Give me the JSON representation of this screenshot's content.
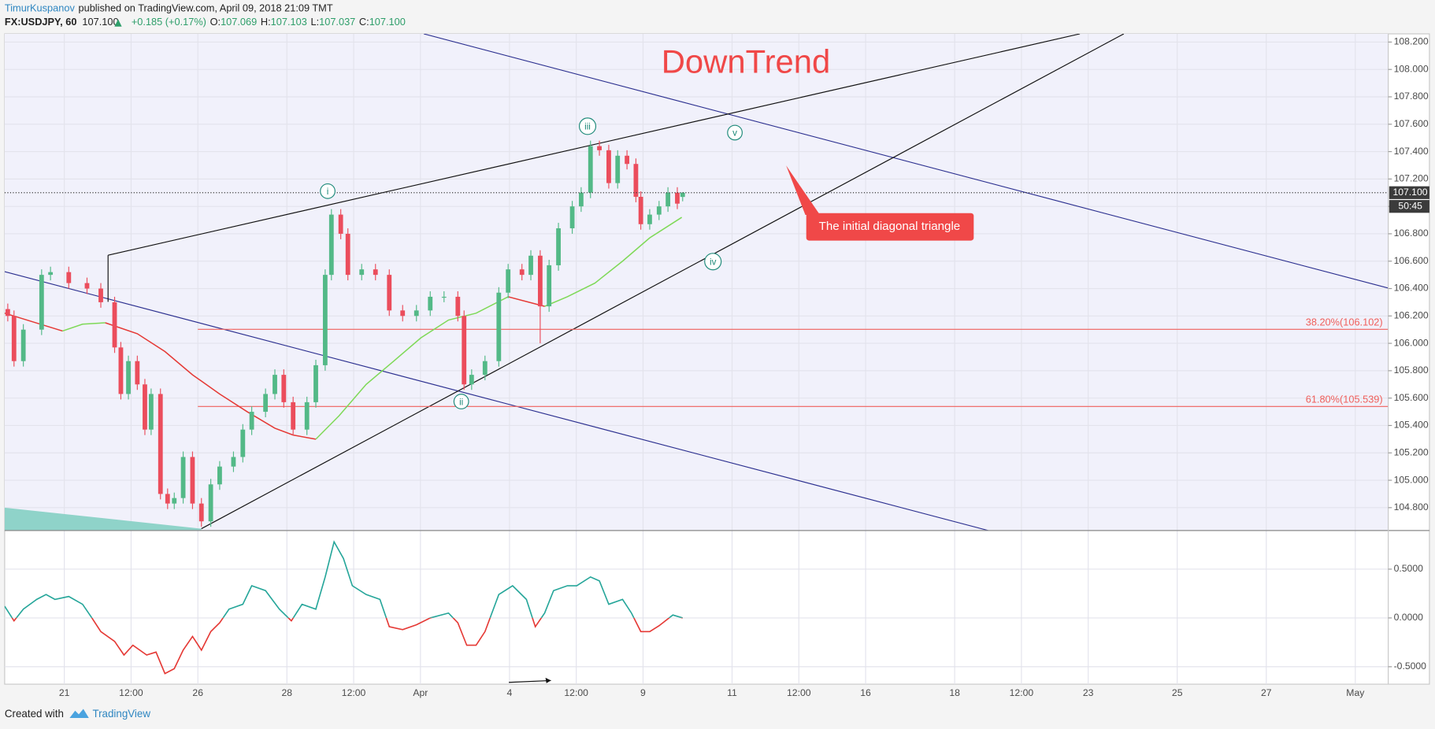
{
  "header": {
    "author": "TimurKuspanov",
    "published": "published on TradingView.com, April 09, 2018 21:09 TMT",
    "symbol": "FX:USDJPY, 60",
    "last": "107.100",
    "change": "+0.185 (+0.17%)",
    "ohlc": [
      {
        "label": "O:",
        "value": "107.069"
      },
      {
        "label": "H:",
        "value": "107.103"
      },
      {
        "label": "L:",
        "value": "107.037"
      },
      {
        "label": "C:",
        "value": "107.100"
      }
    ]
  },
  "footer": {
    "created": "Created with",
    "brand": "TradingView"
  },
  "chart_data": [
    {
      "type": "candlestick",
      "title": "DownTrend",
      "callout": "The initial diagonal triangle",
      "waves": [
        "i",
        "ii",
        "iii",
        "iv",
        "v"
      ],
      "up_color": "#53b987",
      "down_color": "#eb4d5c",
      "x": [
        -1.27,
        -1.13,
        -0.92,
        -0.51,
        -0.31,
        0.1,
        0.51,
        0.82,
        1.13,
        1.27,
        1.44,
        1.64,
        1.81,
        1.95,
        2.16,
        2.32,
        2.47,
        2.67,
        2.88,
        3.08,
        3.29,
        3.49,
        3.8,
        4.01,
        4.21,
        4.52,
        4.73,
        4.93,
        5.14,
        5.45,
        5.65,
        5.86,
        6.0,
        6.21,
        6.37,
        6.68,
        6.99,
        7.3,
        7.6,
        7.91,
        8.22,
        8.53,
        8.84,
        8.98,
        9.15,
        9.45,
        9.76,
        9.97,
        10.28,
        10.48,
        10.69,
        10.89,
        11.1,
        11.41,
        11.61,
        11.82,
        12.02,
        12.23,
        12.43,
        12.64,
        12.84,
        12.95,
        13.15,
        13.36,
        13.56,
        13.77,
        13.89
      ],
      "open": [
        106.25,
        106.2,
        105.87,
        106.1,
        106.5,
        106.52,
        106.44,
        106.4,
        106.3,
        105.97,
        105.63,
        105.87,
        105.7,
        105.37,
        105.63,
        104.9,
        104.83,
        104.87,
        105.17,
        104.83,
        104.7,
        104.97,
        105.1,
        105.17,
        105.37,
        105.5,
        105.63,
        105.77,
        105.57,
        105.37,
        105.57,
        105.84,
        106.5,
        106.94,
        106.8,
        106.5,
        106.54,
        106.5,
        106.24,
        106.2,
        106.24,
        106.34,
        106.34,
        106.2,
        105.7,
        105.77,
        105.87,
        106.37,
        106.54,
        106.5,
        106.64,
        106.27,
        106.57,
        106.84,
        107.0,
        107.1,
        107.44,
        107.41,
        107.17,
        107.37,
        107.31,
        107.07,
        106.87,
        106.94,
        107.0,
        107.1,
        107.069
      ],
      "high": [
        106.29,
        106.24,
        106.14,
        106.54,
        106.56,
        106.56,
        106.48,
        106.44,
        106.34,
        106.01,
        105.91,
        105.91,
        105.74,
        105.67,
        105.67,
        104.94,
        104.91,
        105.21,
        105.21,
        104.87,
        105.01,
        105.14,
        105.21,
        105.41,
        105.54,
        105.67,
        105.81,
        105.81,
        105.61,
        105.61,
        105.88,
        106.54,
        106.98,
        106.98,
        106.84,
        106.58,
        106.58,
        106.54,
        106.28,
        106.28,
        106.38,
        106.38,
        106.38,
        106.24,
        105.81,
        105.91,
        106.41,
        106.58,
        106.58,
        106.68,
        106.68,
        106.61,
        106.88,
        107.04,
        107.14,
        107.48,
        107.48,
        107.45,
        107.41,
        107.41,
        107.35,
        107.11,
        106.98,
        107.04,
        107.14,
        107.14,
        107.103
      ],
      "low": [
        106.16,
        105.83,
        105.83,
        106.06,
        106.46,
        106.4,
        106.36,
        106.26,
        105.93,
        105.59,
        105.59,
        105.66,
        105.33,
        105.33,
        104.86,
        104.79,
        104.79,
        104.83,
        104.79,
        104.66,
        104.66,
        104.93,
        105.06,
        105.13,
        105.33,
        105.46,
        105.59,
        105.53,
        105.33,
        105.33,
        105.53,
        105.8,
        106.46,
        106.76,
        106.46,
        106.46,
        106.46,
        106.2,
        106.16,
        106.16,
        106.2,
        106.3,
        106.16,
        105.66,
        105.66,
        105.73,
        105.83,
        106.33,
        106.46,
        106.46,
        106.0,
        106.23,
        106.53,
        106.8,
        106.96,
        107.06,
        107.37,
        107.13,
        107.13,
        107.27,
        107.03,
        106.83,
        106.83,
        106.9,
        106.96,
        106.98,
        107.037
      ],
      "close": [
        106.2,
        105.87,
        106.1,
        106.5,
        106.52,
        106.44,
        106.4,
        106.3,
        105.97,
        105.63,
        105.87,
        105.7,
        105.37,
        105.63,
        104.9,
        104.83,
        104.87,
        105.17,
        104.83,
        104.7,
        104.97,
        105.1,
        105.17,
        105.37,
        105.5,
        105.63,
        105.77,
        105.57,
        105.37,
        105.57,
        105.84,
        106.5,
        106.94,
        106.8,
        106.5,
        106.54,
        106.5,
        106.24,
        106.2,
        106.24,
        106.34,
        106.34,
        106.2,
        105.7,
        105.77,
        105.87,
        106.37,
        106.54,
        106.5,
        106.64,
        106.27,
        106.57,
        106.84,
        107.0,
        107.1,
        107.44,
        107.41,
        107.17,
        107.37,
        107.31,
        107.07,
        106.87,
        106.94,
        107.0,
        107.1,
        107.02,
        107.1
      ],
      "moving_average": [
        {
          "color": "#e53935",
          "x": [
            -1.34,
            -0.04
          ],
          "values": [
            106.22,
            106.09
          ]
        },
        {
          "color": "#7ed957",
          "x": [
            -0.04,
            0.41,
            0.92
          ],
          "values": [
            106.09,
            106.14,
            106.15
          ]
        },
        {
          "color": "#e53935",
          "x": [
            0.92,
            1.64,
            2.26,
            2.88,
            3.49,
            4.11,
            4.73,
            5.14,
            5.65
          ],
          "values": [
            106.15,
            106.07,
            105.94,
            105.77,
            105.63,
            105.5,
            105.38,
            105.33,
            105.3
          ]
        },
        {
          "color": "#7ed957",
          "x": [
            5.65,
            6.17,
            6.78,
            7.4,
            8.01,
            8.63,
            9.25,
            9.97
          ],
          "values": [
            105.3,
            105.47,
            105.7,
            105.87,
            106.04,
            106.17,
            106.22,
            106.34
          ]
        },
        {
          "color": "#e53935",
          "x": [
            9.97,
            10.79
          ],
          "values": [
            106.34,
            106.27
          ]
        },
        {
          "color": "#7ed957",
          "x": [
            10.79,
            11.3,
            11.92,
            12.54,
            13.15,
            13.87
          ],
          "values": [
            106.27,
            106.34,
            106.44,
            106.6,
            106.77,
            106.92
          ]
        }
      ],
      "fib_levels": [
        {
          "value": 106.102,
          "label": "38.20%(106.102)"
        },
        {
          "value": 105.539,
          "label": "61.80%(105.539)"
        }
      ],
      "fib_color": "#f0605c",
      "last_price": {
        "value": 107.1,
        "label": "107.100"
      },
      "countdown": "50:45",
      "xlim": [
        -1.34,
        29.74
      ],
      "ylim": [
        104.633,
        108.26
      ],
      "yticks": [
        {
          "value": 108.2,
          "label": "108.200"
        },
        {
          "value": 108.0,
          "label": "108.000"
        },
        {
          "value": 107.8,
          "label": "107.800"
        },
        {
          "value": 107.6,
          "label": "107.600"
        },
        {
          "value": 107.4,
          "label": "107.400"
        },
        {
          "value": 107.2,
          "label": "107.200"
        },
        {
          "value": 107.0,
          "label": "107.000"
        },
        {
          "value": 106.8,
          "label": "106.800"
        },
        {
          "value": 106.6,
          "label": "106.600"
        },
        {
          "value": 106.4,
          "label": "106.400"
        },
        {
          "value": 106.2,
          "label": "106.200"
        },
        {
          "value": 106.0,
          "label": "106.000"
        },
        {
          "value": 105.8,
          "label": "105.800"
        },
        {
          "value": 105.6,
          "label": "105.600"
        },
        {
          "value": 105.4,
          "label": "105.400"
        },
        {
          "value": 105.2,
          "label": "105.200"
        },
        {
          "value": 105.0,
          "label": "105.000"
        },
        {
          "value": 104.8,
          "label": "104.800"
        }
      ],
      "grid": true
    },
    {
      "type": "line",
      "up_color": "#26a69a",
      "down_color": "#e53935",
      "x": [
        -1.34,
        -1.13,
        -0.92,
        -0.62,
        -0.41,
        -0.21,
        0.1,
        0.41,
        0.62,
        0.82,
        1.13,
        1.34,
        1.54,
        1.85,
        2.06,
        2.26,
        2.47,
        2.67,
        2.88,
        3.08,
        3.29,
        3.49,
        3.7,
        4.01,
        4.21,
        4.52,
        4.83,
        5.1,
        5.34,
        5.65,
        5.86,
        6.06,
        6.27,
        6.47,
        6.78,
        7.09,
        7.3,
        7.6,
        7.91,
        8.22,
        8.63,
        8.84,
        9.04,
        9.25,
        9.45,
        9.76,
        10.07,
        10.38,
        10.58,
        10.79,
        10.99,
        11.3,
        11.51,
        11.82,
        12.02,
        12.23,
        12.54,
        12.74,
        12.95,
        13.15,
        13.36,
        13.67,
        13.89
      ],
      "values": [
        0.12,
        -0.03,
        0.09,
        0.19,
        0.24,
        0.19,
        0.22,
        0.14,
        0.0,
        -0.14,
        -0.24,
        -0.38,
        -0.28,
        -0.38,
        -0.35,
        -0.57,
        -0.52,
        -0.33,
        -0.19,
        -0.33,
        -0.14,
        -0.05,
        0.09,
        0.14,
        0.33,
        0.28,
        0.09,
        -0.03,
        0.14,
        0.09,
        0.42,
        0.78,
        0.61,
        0.33,
        0.24,
        0.19,
        -0.09,
        -0.12,
        -0.07,
        0.0,
        0.05,
        -0.05,
        -0.28,
        -0.28,
        -0.14,
        0.24,
        0.33,
        0.19,
        -0.09,
        0.05,
        0.28,
        0.33,
        0.33,
        0.42,
        0.38,
        0.14,
        0.19,
        0.05,
        -0.14,
        -0.14,
        -0.08,
        0.03,
        0.0
      ],
      "xlim": [
        -1.34,
        29.74
      ],
      "ylim": [
        -0.679,
        0.896
      ],
      "yticks": [
        {
          "value": 0.5,
          "label": "0.5000"
        },
        {
          "value": 0,
          "label": "0.0000"
        },
        {
          "value": -0.5,
          "label": "-0.5000"
        }
      ],
      "xticks": [
        {
          "value": 0,
          "label": "21"
        },
        {
          "value": 1.5,
          "label": "12:00"
        },
        {
          "value": 3,
          "label": "26"
        },
        {
          "value": 5,
          "label": "28"
        },
        {
          "value": 6.5,
          "label": "12:00"
        },
        {
          "value": 8,
          "label": "Apr"
        },
        {
          "value": 10,
          "label": "4"
        },
        {
          "value": 11.5,
          "label": "12:00"
        },
        {
          "value": 13,
          "label": "9"
        },
        {
          "value": 15,
          "label": "11"
        },
        {
          "value": 16.5,
          "label": "12:00"
        },
        {
          "value": 18,
          "label": "16"
        },
        {
          "value": 20,
          "label": "18"
        },
        {
          "value": 21.5,
          "label": "12:00"
        },
        {
          "value": 23,
          "label": "23"
        },
        {
          "value": 25,
          "label": "25"
        },
        {
          "value": 27,
          "label": "27"
        },
        {
          "value": 29,
          "label": "May"
        }
      ],
      "grid": true
    }
  ]
}
